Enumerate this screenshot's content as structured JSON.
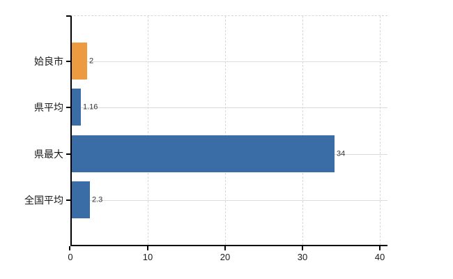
{
  "chart_data": {
    "type": "bar",
    "orientation": "horizontal",
    "title": "",
    "categories": [
      "姶良市",
      "県平均",
      "県最大",
      "全国平均"
    ],
    "values": [
      2,
      1.16,
      34,
      2.3
    ],
    "value_labels": [
      "2",
      "1.16",
      "34",
      "2.3"
    ],
    "series": [
      {
        "name": "",
        "values": [
          2,
          1.16,
          34,
          2.3
        ]
      }
    ],
    "xlabel": "",
    "ylabel": "",
    "xlim": [
      0,
      40
    ],
    "x_ticks": [
      0,
      10,
      20,
      30,
      40
    ],
    "x_tick_labels": [
      "0",
      "10",
      "20",
      "30",
      "40"
    ],
    "grid": true,
    "legend": "none",
    "colors": {
      "highlight_bar": "#ec9b40",
      "default_bar": "#3a6ca6",
      "axis": "#000000",
      "gridline": "#d9d9d9",
      "value_text": "#333333",
      "tick_text": "#1a1a1a",
      "background": "#ffffff"
    },
    "bar_colors": [
      "#ec9b40",
      "#3a6ca6",
      "#3a6ca6",
      "#3a6ca6"
    ]
  }
}
